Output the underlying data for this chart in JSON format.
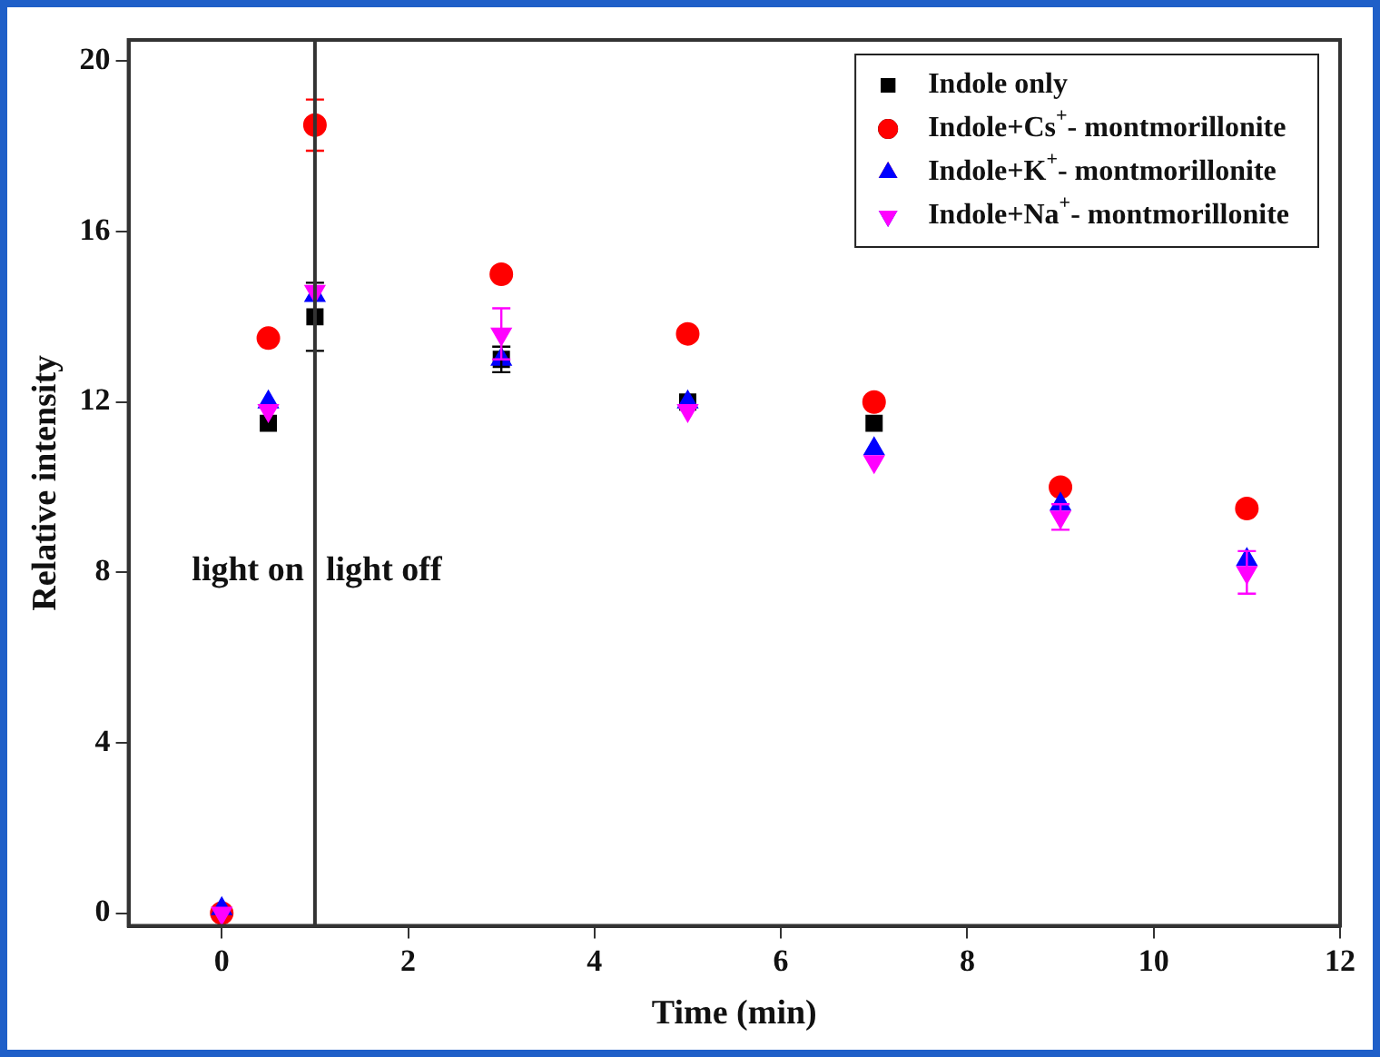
{
  "chart_data": {
    "type": "scatter",
    "xlabel": "Time (min)",
    "ylabel": "Relative intensity",
    "x": [
      0,
      0.5,
      1,
      3,
      5,
      7,
      9,
      11
    ],
    "series": [
      {
        "name": "Indole only",
        "color": "#000000",
        "marker": "square",
        "values": [
          null,
          11.5,
          14.0,
          13.0,
          12.0,
          11.5,
          null,
          null
        ],
        "errors": [
          null,
          null,
          0.8,
          0.3,
          null,
          null,
          null,
          null
        ]
      },
      {
        "name": "Indole+Cs$^{+}$- montmorillonite",
        "color": "#ff0000",
        "marker": "circle",
        "values": [
          0,
          13.5,
          18.5,
          15.0,
          13.6,
          12.0,
          10.0,
          9.5
        ],
        "errors": [
          null,
          null,
          0.6,
          null,
          null,
          null,
          null,
          null
        ]
      },
      {
        "name": "Indole+K$^{+}$- montmorillonite",
        "color": "#0000ff",
        "marker": "triangle",
        "values": [
          0.1,
          12.0,
          14.5,
          13.0,
          12.0,
          10.9,
          9.6,
          8.3
        ]
      },
      {
        "name": "Indole+Na$^{+}$- montmorillonite",
        "color": "#ff00ff",
        "marker": "triangle-down",
        "values": [
          0,
          11.8,
          14.6,
          13.6,
          11.8,
          10.6,
          9.3,
          8.0
        ],
        "errors": [
          null,
          null,
          null,
          0.6,
          null,
          null,
          0.3,
          0.5
        ]
      }
    ],
    "xlim": [
      -1,
      12
    ],
    "xticks": [
      0,
      2,
      4,
      6,
      8,
      10,
      12
    ],
    "ylim": [
      -0.3,
      20.5
    ],
    "yticks": [
      0,
      4,
      8,
      12,
      16,
      20
    ],
    "ref_lines": [
      {
        "axis": "x",
        "value": 1,
        "color": "#333333"
      }
    ],
    "annotations": [
      "light on",
      "light off"
    ],
    "grid": false,
    "legend": "top right"
  }
}
